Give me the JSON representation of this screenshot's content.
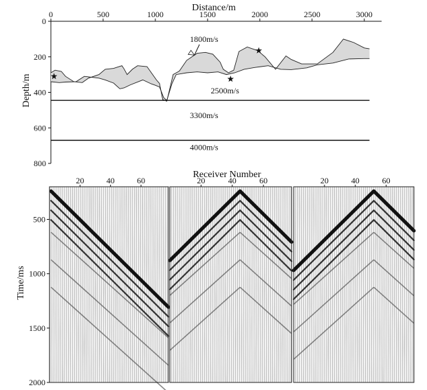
{
  "chart_data": [
    {
      "type": "line",
      "xlabel": "Distance/m",
      "ylabel": "Depth/m",
      "xlim": [
        0,
        3100
      ],
      "ylim": [
        0,
        800
      ],
      "y_inverted": true,
      "x_axis_position": "top",
      "x_ticks": [
        0,
        500,
        1000,
        1500,
        2000,
        2500,
        3000
      ],
      "y_ticks": [
        0,
        200,
        400,
        600,
        800
      ],
      "series": [
        {
          "values": [
            [
              0,
              290
            ],
            [
              40,
              275
            ],
            [
              100,
              282
            ],
            [
              140,
              310
            ],
            [
              220,
              340
            ],
            [
              300,
              345
            ],
            [
              360,
              320
            ],
            [
              460,
              300
            ],
            [
              520,
              270
            ],
            [
              600,
              265
            ],
            [
              680,
              250
            ],
            [
              700,
              268
            ],
            [
              730,
              300
            ],
            [
              780,
              270
            ],
            [
              830,
              250
            ],
            [
              920,
              255
            ],
            [
              980,
              305
            ],
            [
              1010,
              330
            ],
            [
              1040,
              350
            ],
            [
              1070,
              440
            ],
            [
              1110,
              450
            ],
            [
              1170,
              300
            ],
            [
              1230,
              280
            ],
            [
              1300,
              220
            ],
            [
              1400,
              180
            ],
            [
              1480,
              175
            ],
            [
              1550,
              185
            ],
            [
              1620,
              230
            ],
            [
              1650,
              270
            ],
            [
              1700,
              290
            ],
            [
              1750,
              275
            ],
            [
              1800,
              170
            ],
            [
              1880,
              145
            ],
            [
              1980,
              165
            ],
            [
              2050,
              200
            ],
            [
              2150,
              270
            ],
            [
              2250,
              195
            ],
            [
              2300,
              215
            ],
            [
              2400,
              240
            ],
            [
              2550,
              240
            ],
            [
              2700,
              175
            ],
            [
              2800,
              100
            ],
            [
              2900,
              120
            ],
            [
              3000,
              150
            ],
            [
              3050,
              155
            ]
          ]
        },
        {
          "values": [
            [
              0,
              340
            ],
            [
              80,
              345
            ],
            [
              140,
              342
            ],
            [
              240,
              340
            ],
            [
              320,
              310
            ],
            [
              460,
              320
            ],
            [
              520,
              330
            ],
            [
              600,
              348
            ],
            [
              660,
              380
            ],
            [
              700,
              375
            ],
            [
              760,
              358
            ],
            [
              880,
              330
            ],
            [
              960,
              352
            ],
            [
              1000,
              360
            ],
            [
              1040,
              370
            ],
            [
              1080,
              430
            ],
            [
              1110,
              445
            ],
            [
              1160,
              350
            ],
            [
              1200,
              300
            ],
            [
              1300,
              290
            ],
            [
              1400,
              285
            ],
            [
              1500,
              290
            ],
            [
              1600,
              285
            ],
            [
              1680,
              300
            ],
            [
              1760,
              290
            ],
            [
              1850,
              270
            ],
            [
              1950,
              260
            ],
            [
              2080,
              250
            ],
            [
              2200,
              270
            ],
            [
              2300,
              272
            ],
            [
              2450,
              262
            ],
            [
              2550,
              245
            ],
            [
              2700,
              235
            ],
            [
              2850,
              212
            ],
            [
              3000,
              210
            ],
            [
              3050,
              210
            ]
          ]
        }
      ],
      "stars": [
        [
          30,
          310
        ],
        [
          1720,
          325
        ],
        [
          1990,
          165
        ]
      ],
      "annotations": [
        {
          "text": "1800m/s",
          "x": 1330,
          "y": 115
        },
        {
          "text": "2500m/s",
          "x": 1530,
          "y": 405
        },
        {
          "text": "3300m/s",
          "x": 1330,
          "y": 545
        },
        {
          "text": "4000m/s",
          "x": 1330,
          "y": 725
        }
      ],
      "interfaces": [
        {
          "depth": 445,
          "x_start": -80,
          "x_end": 3050
        },
        {
          "depth": 670,
          "x_start": -80,
          "x_end": 3050
        }
      ]
    },
    {
      "type": "heatmap",
      "xlabel": "Receiver Number",
      "ylabel": "Time/ms",
      "panels": [
        {
          "apex_receiver": 1
        },
        {
          "apex_receiver": 45
        },
        {
          "apex_receiver": 52
        }
      ],
      "xlim": [
        0,
        78
      ],
      "x_ticks": [
        20,
        40,
        60
      ],
      "ylim": [
        2000,
        200
      ],
      "y_ticks": [
        500,
        1000,
        1500,
        2000
      ]
    }
  ]
}
